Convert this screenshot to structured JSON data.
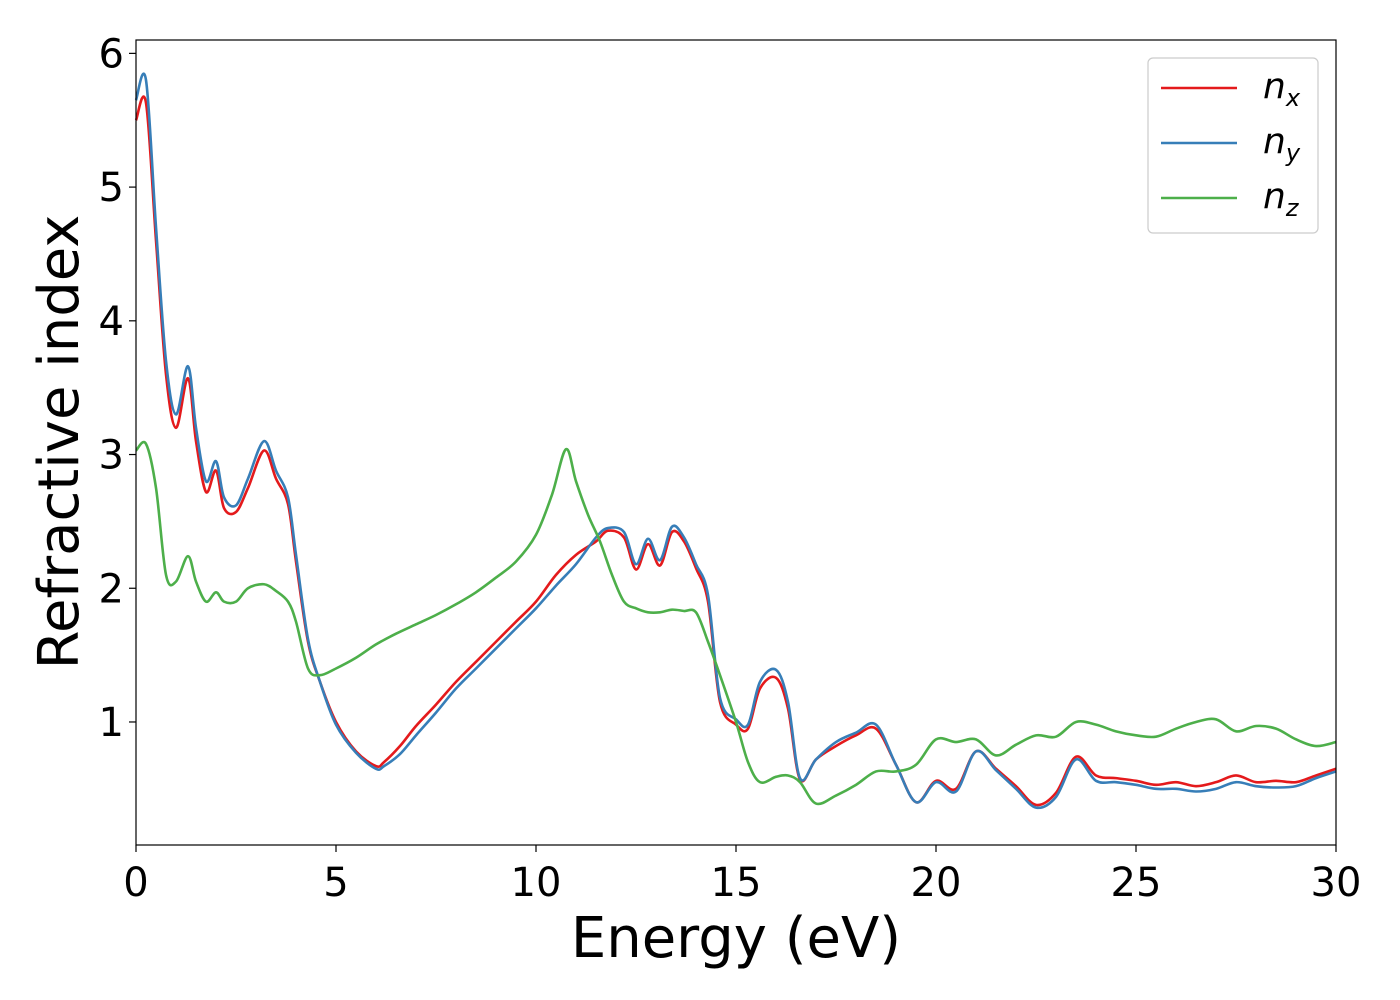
{
  "chart_data": {
    "type": "line",
    "title": "",
    "xlabel": "Energy (eV)",
    "ylabel": "Refractive index",
    "xlim": [
      0,
      30
    ],
    "ylim": [
      0.08,
      6.1
    ],
    "xticks": [
      0,
      5,
      10,
      15,
      20,
      25,
      30
    ],
    "yticks": [
      1,
      2,
      3,
      4,
      5,
      6
    ],
    "grid": false,
    "legend_position": "top-right",
    "series": [
      {
        "name": "n",
        "subscript": "x",
        "color": "#e41a1c",
        "x": [
          0,
          0.25,
          0.5,
          0.75,
          1.0,
          1.3,
          1.5,
          1.75,
          2.0,
          2.2,
          2.5,
          2.8,
          3.2,
          3.5,
          3.8,
          4.0,
          4.3,
          4.6,
          5.0,
          5.5,
          6.0,
          6.2,
          6.6,
          7.0,
          7.5,
          8.0,
          8.5,
          9.0,
          9.5,
          10.0,
          10.5,
          11.0,
          11.5,
          11.8,
          12.2,
          12.5,
          12.8,
          13.1,
          13.4,
          13.7,
          14.0,
          14.3,
          14.6,
          15.0,
          15.3,
          15.6,
          16.0,
          16.3,
          16.6,
          17.0,
          17.5,
          18.0,
          18.5,
          19.0,
          19.5,
          20.0,
          20.5,
          21.0,
          21.5,
          22.0,
          22.5,
          23.0,
          23.5,
          24.0,
          24.5,
          25.0,
          25.5,
          26.0,
          26.5,
          27.0,
          27.5,
          28.0,
          28.5,
          29.0,
          29.5,
          30.0
        ],
        "y": [
          5.5,
          5.63,
          4.6,
          3.6,
          3.2,
          3.57,
          3.1,
          2.72,
          2.88,
          2.6,
          2.57,
          2.75,
          3.03,
          2.82,
          2.63,
          2.2,
          1.6,
          1.3,
          1.0,
          0.78,
          0.67,
          0.7,
          0.82,
          0.97,
          1.13,
          1.3,
          1.45,
          1.6,
          1.75,
          1.9,
          2.1,
          2.25,
          2.35,
          2.43,
          2.38,
          2.14,
          2.33,
          2.17,
          2.42,
          2.35,
          2.15,
          1.9,
          1.15,
          0.98,
          0.95,
          1.25,
          1.33,
          1.1,
          0.57,
          0.72,
          0.82,
          0.9,
          0.95,
          0.68,
          0.4,
          0.56,
          0.5,
          0.78,
          0.65,
          0.52,
          0.38,
          0.47,
          0.74,
          0.6,
          0.58,
          0.56,
          0.53,
          0.55,
          0.52,
          0.55,
          0.6,
          0.55,
          0.56,
          0.55,
          0.6,
          0.65
        ]
      },
      {
        "name": "n",
        "subscript": "y",
        "color": "#377eb8",
        "x": [
          0,
          0.25,
          0.5,
          0.75,
          1.0,
          1.3,
          1.5,
          1.75,
          2.0,
          2.2,
          2.5,
          2.8,
          3.2,
          3.5,
          3.8,
          4.0,
          4.3,
          4.6,
          5.0,
          5.5,
          6.0,
          6.2,
          6.6,
          7.0,
          7.5,
          8.0,
          8.5,
          9.0,
          9.5,
          10.0,
          10.5,
          11.0,
          11.5,
          11.8,
          12.2,
          12.5,
          12.8,
          13.1,
          13.4,
          13.7,
          14.0,
          14.3,
          14.6,
          15.0,
          15.3,
          15.6,
          16.0,
          16.3,
          16.6,
          17.0,
          17.5,
          18.0,
          18.5,
          19.0,
          19.5,
          20.0,
          20.5,
          21.0,
          21.5,
          22.0,
          22.5,
          23.0,
          23.5,
          24.0,
          24.5,
          25.0,
          25.5,
          26.0,
          26.5,
          27.0,
          27.5,
          28.0,
          28.5,
          29.0,
          29.5,
          30.0
        ],
        "y": [
          5.65,
          5.8,
          4.7,
          3.7,
          3.3,
          3.66,
          3.2,
          2.8,
          2.95,
          2.68,
          2.62,
          2.82,
          3.1,
          2.88,
          2.68,
          2.25,
          1.62,
          1.3,
          0.98,
          0.77,
          0.65,
          0.67,
          0.76,
          0.9,
          1.07,
          1.25,
          1.4,
          1.55,
          1.7,
          1.85,
          2.02,
          2.18,
          2.38,
          2.45,
          2.42,
          2.18,
          2.37,
          2.21,
          2.46,
          2.38,
          2.18,
          1.95,
          1.18,
          1.02,
          0.98,
          1.3,
          1.39,
          1.15,
          0.58,
          0.72,
          0.85,
          0.92,
          0.98,
          0.68,
          0.4,
          0.55,
          0.48,
          0.78,
          0.64,
          0.5,
          0.36,
          0.44,
          0.72,
          0.56,
          0.55,
          0.53,
          0.5,
          0.5,
          0.48,
          0.5,
          0.55,
          0.52,
          0.51,
          0.52,
          0.58,
          0.63
        ]
      },
      {
        "name": "n",
        "subscript": "z",
        "color": "#4daf4a",
        "x": [
          0,
          0.25,
          0.5,
          0.75,
          1.0,
          1.3,
          1.5,
          1.75,
          2.0,
          2.2,
          2.5,
          2.8,
          3.2,
          3.5,
          3.8,
          4.0,
          4.3,
          4.6,
          5.0,
          5.5,
          6.0,
          6.5,
          7.0,
          7.5,
          8.0,
          8.5,
          9.0,
          9.5,
          10.0,
          10.4,
          10.75,
          11.0,
          11.3,
          11.6,
          11.9,
          12.2,
          12.5,
          12.8,
          13.1,
          13.4,
          13.7,
          14.0,
          14.3,
          14.6,
          15.0,
          15.3,
          15.6,
          16.0,
          16.3,
          16.6,
          17.0,
          17.5,
          18.0,
          18.5,
          19.0,
          19.5,
          20.0,
          20.5,
          21.0,
          21.5,
          22.0,
          22.5,
          23.0,
          23.5,
          24.0,
          24.5,
          25.0,
          25.5,
          26.0,
          26.5,
          27.0,
          27.5,
          28.0,
          28.5,
          29.0,
          29.5,
          30.0
        ],
        "y": [
          3.03,
          3.08,
          2.75,
          2.1,
          2.05,
          2.24,
          2.05,
          1.9,
          1.97,
          1.9,
          1.9,
          2.0,
          2.03,
          1.98,
          1.9,
          1.75,
          1.4,
          1.35,
          1.4,
          1.48,
          1.58,
          1.66,
          1.73,
          1.8,
          1.88,
          1.97,
          2.08,
          2.2,
          2.4,
          2.7,
          3.04,
          2.8,
          2.55,
          2.35,
          2.1,
          1.9,
          1.85,
          1.82,
          1.82,
          1.84,
          1.83,
          1.82,
          1.6,
          1.35,
          1.0,
          0.7,
          0.55,
          0.59,
          0.6,
          0.55,
          0.39,
          0.45,
          0.53,
          0.63,
          0.63,
          0.68,
          0.87,
          0.85,
          0.87,
          0.75,
          0.83,
          0.9,
          0.89,
          1.0,
          0.98,
          0.93,
          0.9,
          0.89,
          0.95,
          1.0,
          1.02,
          0.93,
          0.97,
          0.95,
          0.87,
          0.82,
          0.85
        ]
      }
    ]
  }
}
